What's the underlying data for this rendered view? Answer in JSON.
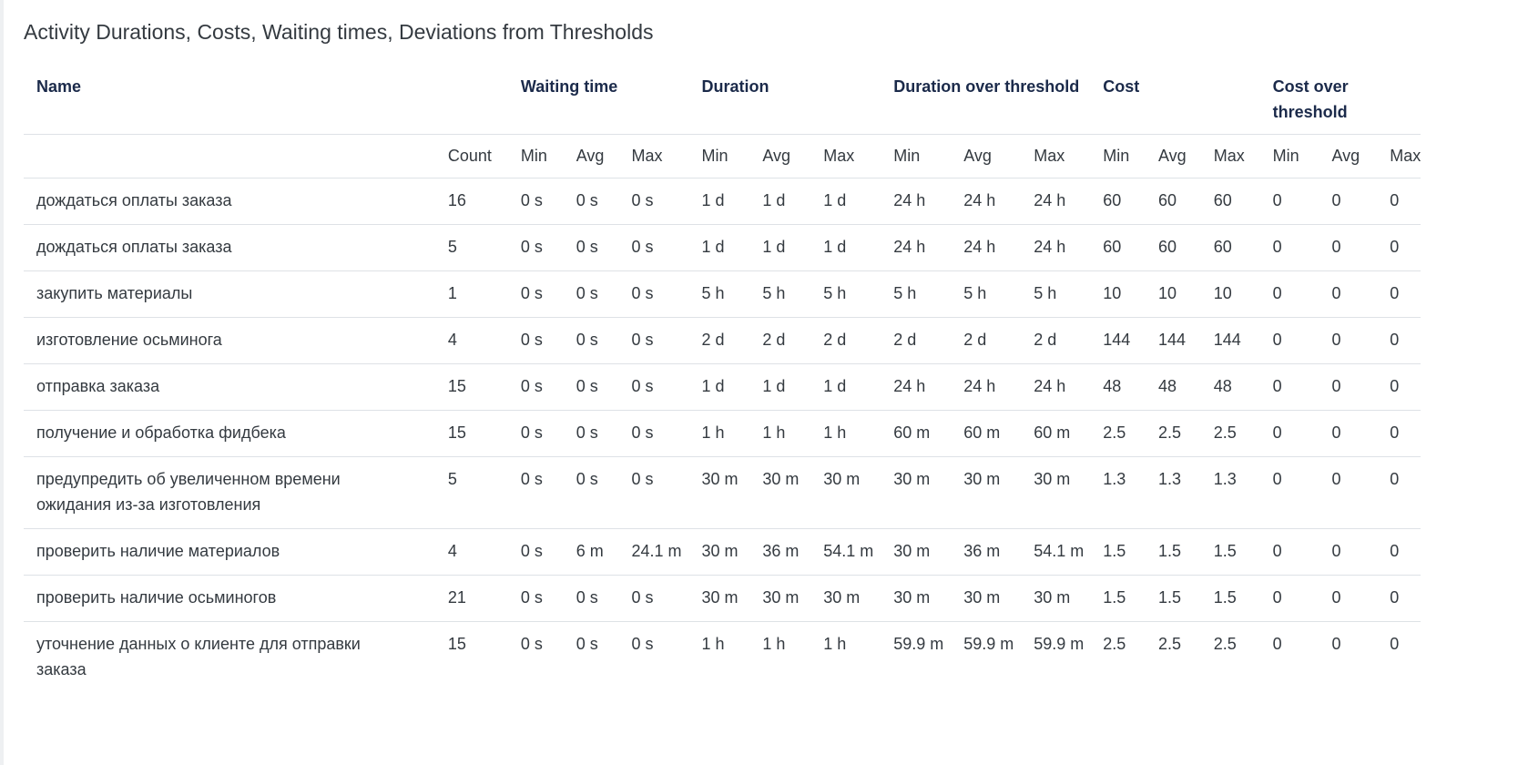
{
  "title": "Activity Durations, Costs, Waiting times, Deviations from Thresholds",
  "group_headers": {
    "name": "Name",
    "waiting": "Waiting time",
    "duration": "Duration",
    "duration_over": "Duration over threshold",
    "cost": "Cost",
    "cost_over": "Cost over threshold"
  },
  "sub_headers": [
    "Count",
    "Min",
    "Avg",
    "Max",
    "Min",
    "Avg",
    "Max",
    "Min",
    "Avg",
    "Max",
    "Min",
    "Avg",
    "Max",
    "Min",
    "Avg",
    "Max"
  ],
  "rows": [
    {
      "name": "дождаться оплаты заказа",
      "cells": [
        "16",
        "0 s",
        "0 s",
        "0 s",
        "1 d",
        "1 d",
        "1 d",
        "24 h",
        "24 h",
        "24 h",
        "60",
        "60",
        "60",
        "0",
        "0",
        "0"
      ]
    },
    {
      "name": "дождаться оплаты заказа",
      "cells": [
        "5",
        "0 s",
        "0 s",
        "0 s",
        "1 d",
        "1 d",
        "1 d",
        "24 h",
        "24 h",
        "24 h",
        "60",
        "60",
        "60",
        "0",
        "0",
        "0"
      ]
    },
    {
      "name": "закупить материалы",
      "cells": [
        "1",
        "0 s",
        "0 s",
        "0 s",
        "5 h",
        "5 h",
        "5 h",
        "5 h",
        "5 h",
        "5 h",
        "10",
        "10",
        "10",
        "0",
        "0",
        "0"
      ]
    },
    {
      "name": "изготовление осьминога",
      "cells": [
        "4",
        "0 s",
        "0 s",
        "0 s",
        "2 d",
        "2 d",
        "2 d",
        "2 d",
        "2 d",
        "2 d",
        "144",
        "144",
        "144",
        "0",
        "0",
        "0"
      ]
    },
    {
      "name": "отправка заказа",
      "cells": [
        "15",
        "0 s",
        "0 s",
        "0 s",
        "1 d",
        "1 d",
        "1 d",
        "24 h",
        "24 h",
        "24 h",
        "48",
        "48",
        "48",
        "0",
        "0",
        "0"
      ]
    },
    {
      "name": "получение и обработка фидбека",
      "cells": [
        "15",
        "0 s",
        "0 s",
        "0 s",
        "1 h",
        "1 h",
        "1 h",
        "60 m",
        "60 m",
        "60 m",
        "2.5",
        "2.5",
        "2.5",
        "0",
        "0",
        "0"
      ]
    },
    {
      "name": "предупредить об увеличенном времени ожидания из-за изготовления",
      "cells": [
        "5",
        "0 s",
        "0 s",
        "0 s",
        "30 m",
        "30 m",
        "30 m",
        "30 m",
        "30 m",
        "30 m",
        "1.3",
        "1.3",
        "1.3",
        "0",
        "0",
        "0"
      ]
    },
    {
      "name": "проверить наличие материалов",
      "cells": [
        "4",
        "0 s",
        "6 m",
        "24.1 m",
        "30 m",
        "36 m",
        "54.1 m",
        "30 m",
        "36 m",
        "54.1 m",
        "1.5",
        "1.5",
        "1.5",
        "0",
        "0",
        "0"
      ]
    },
    {
      "name": "проверить наличие осьминогов",
      "cells": [
        "21",
        "0 s",
        "0 s",
        "0 s",
        "30 m",
        "30 m",
        "30 m",
        "30 m",
        "30 m",
        "30 m",
        "1.5",
        "1.5",
        "1.5",
        "0",
        "0",
        "0"
      ]
    },
    {
      "name": "уточнение данных о клиенте для отправки заказа",
      "cells": [
        "15",
        "0 s",
        "0 s",
        "0 s",
        "1 h",
        "1 h",
        "1 h",
        "59.9 m",
        "59.9 m",
        "59.9 m",
        "2.5",
        "2.5",
        "2.5",
        "0",
        "0",
        "0"
      ]
    }
  ]
}
